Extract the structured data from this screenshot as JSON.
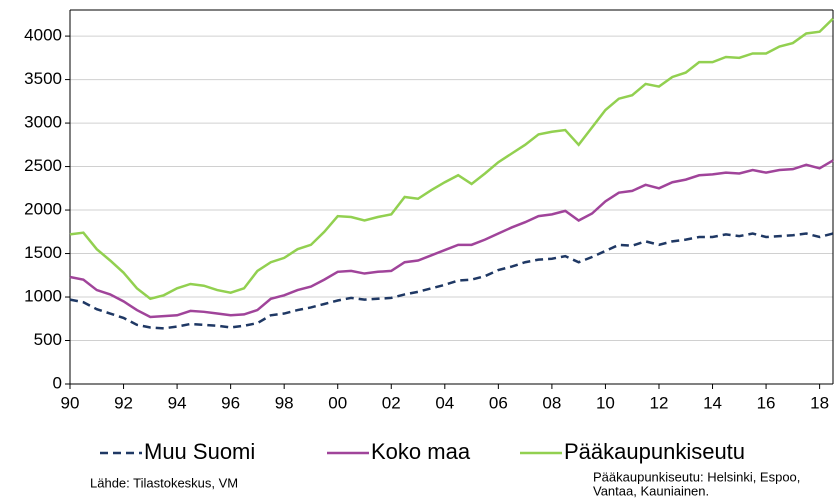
{
  "chart_data": {
    "type": "line",
    "x": [
      1990,
      1990.5,
      1991,
      1991.5,
      1992,
      1992.5,
      1993,
      1993.5,
      1994,
      1994.5,
      1995,
      1995.5,
      1996,
      1996.5,
      1997,
      1997.5,
      1998,
      1998.5,
      1999,
      1999.5,
      2000,
      2000.5,
      2001,
      2001.5,
      2002,
      2002.5,
      2003,
      2003.5,
      2004,
      2004.5,
      2005,
      2005.5,
      2006,
      2006.5,
      2007,
      2007.5,
      2008,
      2008.5,
      2009,
      2009.5,
      2010,
      2010.5,
      2011,
      2011.5,
      2012,
      2012.5,
      2013,
      2013.5,
      2014,
      2014.5,
      2015,
      2015.5,
      2016,
      2016.5,
      2017,
      2017.5,
      2018,
      2018.5
    ],
    "series": [
      {
        "name": "Muu Suomi",
        "color": "#1f3864",
        "dashed": true,
        "values": [
          970,
          940,
          860,
          810,
          760,
          680,
          650,
          640,
          660,
          690,
          680,
          670,
          650,
          670,
          700,
          790,
          810,
          850,
          880,
          920,
          960,
          990,
          970,
          980,
          990,
          1030,
          1060,
          1100,
          1140,
          1190,
          1200,
          1240,
          1310,
          1350,
          1400,
          1430,
          1440,
          1470,
          1400,
          1460,
          1530,
          1600,
          1590,
          1640,
          1600,
          1640,
          1660,
          1690,
          1690,
          1720,
          1700,
          1730,
          1690,
          1700,
          1710,
          1730,
          1690,
          1730
        ]
      },
      {
        "name": "Koko maa",
        "color": "#a0449a",
        "dashed": false,
        "values": [
          1230,
          1200,
          1080,
          1030,
          950,
          850,
          770,
          780,
          790,
          840,
          830,
          810,
          790,
          800,
          850,
          980,
          1020,
          1080,
          1120,
          1200,
          1290,
          1300,
          1270,
          1290,
          1300,
          1400,
          1420,
          1480,
          1540,
          1600,
          1600,
          1660,
          1730,
          1800,
          1860,
          1930,
          1950,
          1990,
          1880,
          1960,
          2100,
          2200,
          2220,
          2290,
          2250,
          2320,
          2350,
          2400,
          2410,
          2430,
          2420,
          2460,
          2430,
          2460,
          2470,
          2520,
          2480,
          2570
        ]
      },
      {
        "name": "Pääkaupunkiseutu",
        "color": "#92d050",
        "dashed": false,
        "values": [
          1720,
          1740,
          1550,
          1420,
          1280,
          1100,
          980,
          1020,
          1100,
          1150,
          1130,
          1080,
          1050,
          1100,
          1300,
          1400,
          1450,
          1550,
          1600,
          1750,
          1930,
          1920,
          1880,
          1920,
          1950,
          2150,
          2130,
          2230,
          2320,
          2400,
          2300,
          2420,
          2550,
          2650,
          2750,
          2870,
          2900,
          2920,
          2750,
          2950,
          3150,
          3280,
          3320,
          3450,
          3420,
          3530,
          3580,
          3700,
          3700,
          3760,
          3750,
          3800,
          3800,
          3880,
          3920,
          4030,
          4050,
          4200
        ]
      }
    ],
    "xlim": [
      1990,
      2018.5
    ],
    "xticks": [
      {
        "value": 1990,
        "label": "90"
      },
      {
        "value": 1992,
        "label": "92"
      },
      {
        "value": 1994,
        "label": "94"
      },
      {
        "value": 1996,
        "label": "96"
      },
      {
        "value": 1998,
        "label": "98"
      },
      {
        "value": 2000,
        "label": "00"
      },
      {
        "value": 2002,
        "label": "02"
      },
      {
        "value": 2004,
        "label": "04"
      },
      {
        "value": 2006,
        "label": "06"
      },
      {
        "value": 2008,
        "label": "08"
      },
      {
        "value": 2010,
        "label": "10"
      },
      {
        "value": 2012,
        "label": "12"
      },
      {
        "value": 2014,
        "label": "14"
      },
      {
        "value": 2016,
        "label": "16"
      },
      {
        "value": 2018,
        "label": "18"
      }
    ],
    "ylim": [
      0,
      4300
    ],
    "yticks": [
      0,
      500,
      1000,
      1500,
      2000,
      2500,
      3000,
      3500,
      4000
    ],
    "grid": true,
    "source": "Lähde: Tilastokeskus, VM",
    "notes": [
      "Pääkaupunkiseutu: Helsinki, Espoo,",
      "Vantaa, Kauniainen."
    ]
  }
}
